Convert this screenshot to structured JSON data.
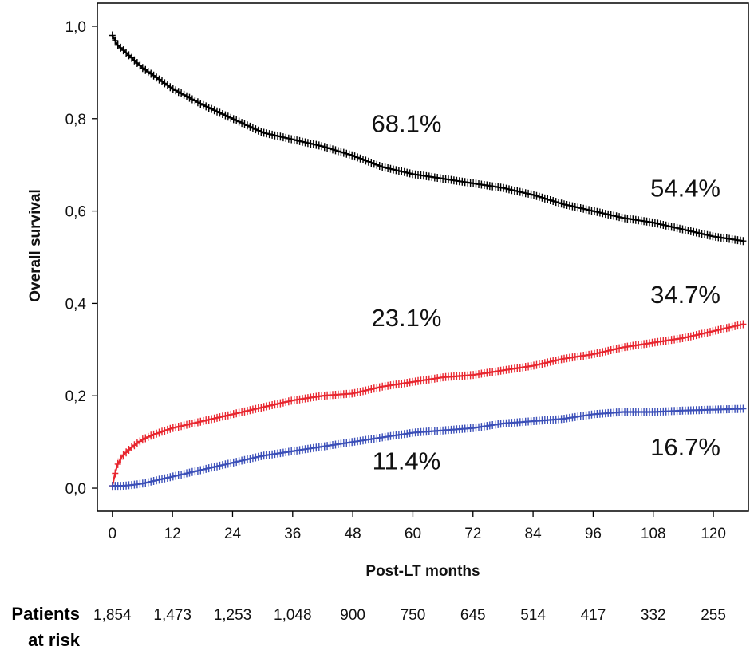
{
  "chart_data": {
    "type": "line",
    "title": "",
    "xlabel": "Post-LT months",
    "ylabel": "Overall survival",
    "xlim": [
      -3,
      127
    ],
    "ylim": [
      -0.05,
      1.05
    ],
    "grid": false,
    "x_ticks": [
      0,
      12,
      24,
      36,
      48,
      60,
      72,
      84,
      96,
      108,
      120
    ],
    "x_tick_labels": [
      "0",
      "12",
      "24",
      "36",
      "48",
      "60",
      "72",
      "84",
      "96",
      "108",
      "120"
    ],
    "y_ticks": [
      0.0,
      0.2,
      0.4,
      0.6,
      0.8,
      1.0
    ],
    "y_tick_labels": [
      "0,0",
      "0,2",
      "0,4",
      "0,6",
      "0,8",
      "1,0"
    ],
    "series": [
      {
        "name": "Overall survival",
        "color": "#000000",
        "x": [
          0,
          1,
          2,
          4,
          6,
          8,
          12,
          18,
          24,
          30,
          36,
          42,
          48,
          54,
          60,
          66,
          72,
          78,
          84,
          90,
          96,
          102,
          108,
          114,
          120,
          126
        ],
        "y": [
          0.98,
          0.96,
          0.95,
          0.93,
          0.91,
          0.895,
          0.865,
          0.83,
          0.8,
          0.77,
          0.755,
          0.74,
          0.72,
          0.695,
          0.68,
          0.67,
          0.66,
          0.65,
          0.635,
          0.615,
          0.6,
          0.585,
          0.575,
          0.56,
          0.545,
          0.535
        ]
      },
      {
        "name": "Red series",
        "color": "#e8262f",
        "x": [
          0,
          0.5,
          1,
          2,
          3,
          4,
          6,
          8,
          12,
          18,
          24,
          30,
          36,
          42,
          48,
          54,
          60,
          66,
          72,
          78,
          84,
          90,
          96,
          102,
          108,
          114,
          120,
          126
        ],
        "y": [
          0.005,
          0.03,
          0.05,
          0.07,
          0.08,
          0.09,
          0.105,
          0.115,
          0.13,
          0.145,
          0.16,
          0.175,
          0.19,
          0.2,
          0.205,
          0.22,
          0.23,
          0.24,
          0.245,
          0.255,
          0.265,
          0.28,
          0.29,
          0.305,
          0.315,
          0.325,
          0.34,
          0.355
        ]
      },
      {
        "name": "Blue series",
        "color": "#3b4fb8",
        "x": [
          0,
          2,
          4,
          6,
          8,
          12,
          18,
          24,
          30,
          36,
          42,
          48,
          54,
          60,
          66,
          72,
          78,
          84,
          90,
          96,
          102,
          108,
          114,
          120,
          126
        ],
        "y": [
          0.005,
          0.005,
          0.007,
          0.01,
          0.015,
          0.025,
          0.04,
          0.055,
          0.07,
          0.08,
          0.09,
          0.1,
          0.11,
          0.12,
          0.125,
          0.13,
          0.14,
          0.145,
          0.15,
          0.16,
          0.165,
          0.165,
          0.168,
          0.17,
          0.172
        ]
      }
    ],
    "annotations": [
      {
        "text": "68.1%",
        "x": 60,
        "y": 0.79
      },
      {
        "text": "54.4%",
        "x": 120,
        "y": 0.65
      },
      {
        "text": "34.7%",
        "x": 120,
        "y": 0.42
      },
      {
        "text": "23.1%",
        "x": 60,
        "y": 0.37
      },
      {
        "text": "16.7%",
        "x": 120,
        "y": 0.09
      },
      {
        "text": "11.4%",
        "x": 60,
        "y": 0.06
      }
    ],
    "risk_table": {
      "label_line1": "Patients",
      "label_line2": "at risk",
      "x": [
        0,
        12,
        24,
        36,
        48,
        60,
        72,
        84,
        96,
        108,
        120
      ],
      "values": [
        "1,854",
        "1,473",
        "1,253",
        "1,048",
        "900",
        "750",
        "645",
        "514",
        "417",
        "332",
        "255"
      ]
    }
  }
}
